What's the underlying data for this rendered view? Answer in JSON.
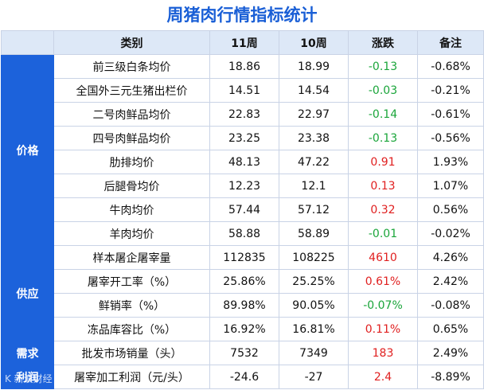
{
  "title": "周猪肉行情指标统计",
  "headers": [
    "类别",
    "11周",
    "10周",
    "涨跌",
    "备注"
  ],
  "groups": [
    {
      "label": "价格",
      "rows": [
        {
          "name": "前三级白条均价",
          "w11": "18.86",
          "w10": "18.99",
          "change": "-0.13",
          "dir": "neg",
          "note": "-0.68%"
        },
        {
          "name": "全国外三元生猪出栏价",
          "w11": "14.51",
          "w10": "14.54",
          "change": "-0.03",
          "dir": "neg",
          "note": "-0.21%"
        },
        {
          "name": "二号肉鲜品均价",
          "w11": "22.83",
          "w10": "22.97",
          "change": "-0.14",
          "dir": "neg",
          "note": "-0.61%"
        },
        {
          "name": "四号肉鲜品均价",
          "w11": "23.25",
          "w10": "23.38",
          "change": "-0.13",
          "dir": "neg",
          "note": "-0.56%"
        },
        {
          "name": "肋排均价",
          "w11": "48.13",
          "w10": "47.22",
          "change": "0.91",
          "dir": "pos",
          "note": "1.93%"
        },
        {
          "name": "后腿骨均价",
          "w11": "12.23",
          "w10": "12.1",
          "change": "0.13",
          "dir": "pos",
          "note": "1.07%"
        },
        {
          "name": "牛肉均价",
          "w11": "57.44",
          "w10": "57.12",
          "change": "0.32",
          "dir": "pos",
          "note": "0.56%"
        },
        {
          "name": "羊肉均价",
          "w11": "58.88",
          "w10": "58.89",
          "change": "-0.01",
          "dir": "neg",
          "note": "-0.02%"
        }
      ]
    },
    {
      "label": "供应",
      "rows": [
        {
          "name": "样本屠企屠宰量",
          "w11": "112835",
          "w10": "108225",
          "change": "4610",
          "dir": "pos",
          "note": "4.26%"
        },
        {
          "name": "屠宰开工率（%）",
          "w11": "25.86%",
          "w10": "25.25%",
          "change": "0.61%",
          "dir": "pos",
          "note": "2.42%"
        },
        {
          "name": "鲜销率（%）",
          "w11": "89.98%",
          "w10": "90.05%",
          "change": "-0.07%",
          "dir": "neg",
          "note": "-0.08%"
        },
        {
          "name": "冻品库容比（%）",
          "w11": "16.92%",
          "w10": "16.81%",
          "change": "0.11%",
          "dir": "pos",
          "note": "0.65%"
        }
      ]
    },
    {
      "label": "需求",
      "rows": [
        {
          "name": "批发市场销量（头）",
          "w11": "7532",
          "w10": "7349",
          "change": "183",
          "dir": "pos",
          "note": "2.49%"
        }
      ]
    },
    {
      "label": "利润",
      "rows": [
        {
          "name": "屠宰加工利润（元/头）",
          "w11": "-24.6",
          "w10": "-27",
          "change": "2.4",
          "dir": "pos",
          "note": "-8.89%"
        }
      ]
    }
  ],
  "watermark": "K 新浪财经",
  "colors": {
    "accent": "#1c62db",
    "header_bg": "#dde8f7",
    "up": "#e02020",
    "down": "#1aa53a",
    "title": "#1a5fd6"
  }
}
